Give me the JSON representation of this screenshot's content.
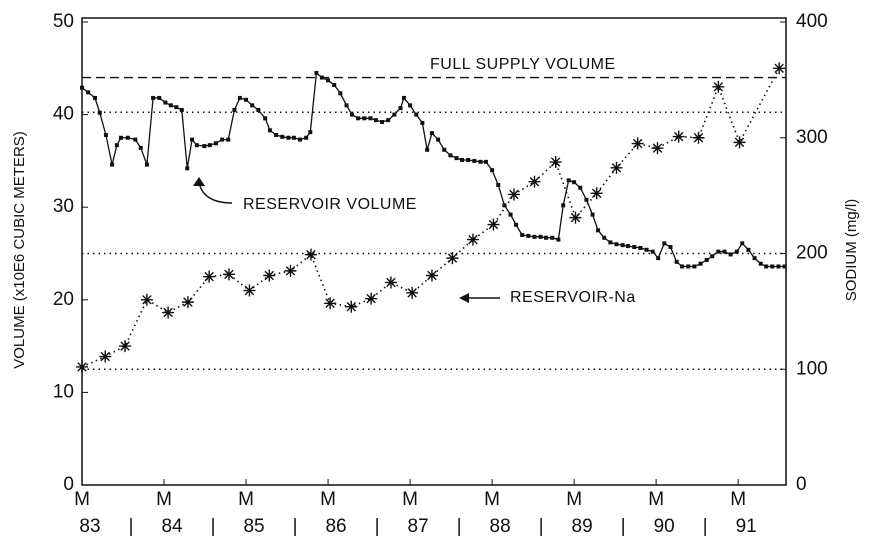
{
  "chart_data": {
    "type": "line",
    "y_label": "VOLUME (x10E6 CUBIC METERS)",
    "y2_label": "SODIUM (mg/l)",
    "xlim": [
      0,
      103
    ],
    "xticks": [
      {
        "value": 0,
        "label": "M"
      },
      {
        "value": 12,
        "label": "M"
      },
      {
        "value": 24,
        "label": "M"
      },
      {
        "value": 36,
        "label": "M"
      },
      {
        "value": 48,
        "label": "M"
      },
      {
        "value": 60,
        "label": "M"
      },
      {
        "value": 72,
        "label": "M"
      },
      {
        "value": 84,
        "label": "M"
      },
      {
        "value": 96,
        "label": "M"
      }
    ],
    "year_labels": [
      "83",
      "84",
      "85",
      "86",
      "87",
      "88",
      "89",
      "90",
      "91"
    ],
    "ylim": [
      0,
      50
    ],
    "yticks": [
      0,
      10,
      20,
      30,
      40,
      50
    ],
    "y2lim": [
      0,
      400
    ],
    "y2ticks": [
      0,
      100,
      200,
      300,
      400
    ],
    "full_supply": {
      "label": "FULL SUPPLY VOLUME",
      "value": 44
    },
    "reference_lines": [
      100,
      200,
      322
    ],
    "series": [
      {
        "name": "RESERVOIR VOLUME",
        "color": "#111111",
        "axis": "y",
        "x": [
          0,
          0.9,
          1.9,
          2.6,
          3.5,
          4.4,
          5.1,
          5.7,
          6.7,
          7.8,
          8.6,
          9.5,
          10.4,
          11.3,
          12.2,
          13.0,
          13.8,
          14.6,
          15.4,
          16.1,
          16.8,
          17.9,
          18.7,
          19.6,
          20.5,
          21.4,
          22.3,
          23.1,
          24.0,
          24.9,
          25.8,
          26.8,
          27.5,
          28.4,
          29.3,
          30.2,
          31.0,
          31.9,
          32.8,
          33.4,
          34.3,
          35.1,
          36.0,
          36.9,
          37.8,
          38.7,
          39.5,
          40.4,
          41.3,
          42.2,
          43.0,
          43.9,
          44.8,
          45.7,
          46.6,
          47.1,
          48.0,
          48.9,
          49.8,
          50.5,
          51.2,
          52.1,
          53.0,
          53.9,
          54.8,
          55.6,
          56.5,
          57.4,
          58.3,
          59.1,
          60.0,
          60.9,
          61.8,
          62.7,
          63.5,
          64.4,
          65.3,
          66.2,
          67.1,
          67.9,
          68.8,
          69.7,
          70.4,
          71.2,
          72.0,
          72.9,
          73.8,
          74.7,
          75.5,
          76.4,
          77.3,
          78.2,
          79.1,
          79.9,
          80.8,
          81.7,
          82.6,
          83.5,
          84.3,
          85.2,
          86.1,
          87.0,
          87.8,
          88.7,
          89.6,
          90.5,
          91.4,
          92.2,
          93.1,
          94.0,
          94.9,
          95.8,
          96.6,
          97.5,
          98.4,
          99.3,
          100.1,
          101.0,
          101.9,
          102.8
        ],
        "values": [
          42.9,
          42.4,
          41.8,
          40.2,
          37.8,
          34.6,
          36.7,
          37.5,
          37.5,
          37.3,
          36.4,
          34.6,
          41.8,
          41.8,
          41.3,
          41,
          40.8,
          40.5,
          34.2,
          37.3,
          36.7,
          36.6,
          36.7,
          36.9,
          37.3,
          37.3,
          40.5,
          41.8,
          41.6,
          41,
          40.5,
          39.6,
          38.3,
          37.8,
          37.6,
          37.5,
          37.5,
          37.3,
          37.5,
          38.1,
          44.5,
          44,
          43.7,
          43.2,
          42.3,
          41,
          40,
          39.6,
          39.6,
          39.6,
          39.4,
          39.2,
          39.4,
          40,
          40.7,
          41.8,
          41,
          40,
          39.1,
          36.2,
          38,
          37.3,
          36.2,
          35.6,
          35.3,
          35.1,
          35.1,
          35,
          34.9,
          34.9,
          34,
          32.4,
          30.2,
          29.2,
          28.1,
          27,
          26.9,
          26.8,
          26.8,
          26.7,
          26.7,
          26.5,
          30.2,
          32.9,
          32.7,
          32.1,
          30.8,
          29.2,
          27.5,
          26.7,
          26.2,
          26,
          25.9,
          25.8,
          25.7,
          25.6,
          25.4,
          25.2,
          24.5,
          26.1,
          25.7,
          24.1,
          23.6,
          23.6,
          23.6,
          23.9,
          24.3,
          24.7,
          25.2,
          25.2,
          24.9,
          25.2,
          26.1,
          25.4,
          24.5,
          23.9,
          23.6,
          23.6,
          23.6,
          23.6
        ]
      },
      {
        "name": "RESERVOIR-Na",
        "color": "#111111",
        "axis": "y2",
        "x": [
          0,
          3.4,
          6.3,
          9.5,
          12.6,
          15.5,
          18.6,
          21.5,
          24.5,
          27.4,
          30.5,
          33.5,
          36.3,
          39.4,
          42.3,
          45.2,
          48.3,
          51.2,
          54.2,
          57.2,
          60.2,
          63.2,
          66.2,
          69.3,
          72.2,
          75.3,
          78.2,
          81.3,
          84.2,
          87.3,
          90.2,
          93.1,
          96.2,
          102.0
        ],
        "values": [
          102,
          111,
          120,
          160,
          149,
          158,
          180,
          182,
          168,
          181,
          185,
          199,
          157,
          154,
          161,
          175,
          166,
          181,
          196,
          212,
          225,
          251,
          262,
          279,
          231,
          252,
          274,
          295,
          291,
          301,
          300,
          344,
          296,
          360
        ]
      }
    ]
  }
}
